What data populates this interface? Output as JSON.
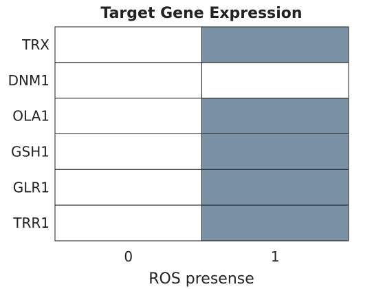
{
  "chart_data": {
    "type": "heatmap",
    "title": "Target Gene Expression",
    "xlabel": "ROS presense",
    "ylabel": "",
    "x_categories": [
      "0",
      "1"
    ],
    "y_categories": [
      "TRX",
      "DNM1",
      "OLA1",
      "GSH1",
      "GLR1",
      "TRR1"
    ],
    "values": [
      [
        0,
        1
      ],
      [
        0,
        0
      ],
      [
        0,
        1
      ],
      [
        0,
        1
      ],
      [
        0,
        1
      ],
      [
        0,
        1
      ]
    ],
    "colors": {
      "off": "#ffffff",
      "on": "#7b91a5",
      "border": "#222222"
    },
    "grid": true,
    "legend": "none"
  }
}
